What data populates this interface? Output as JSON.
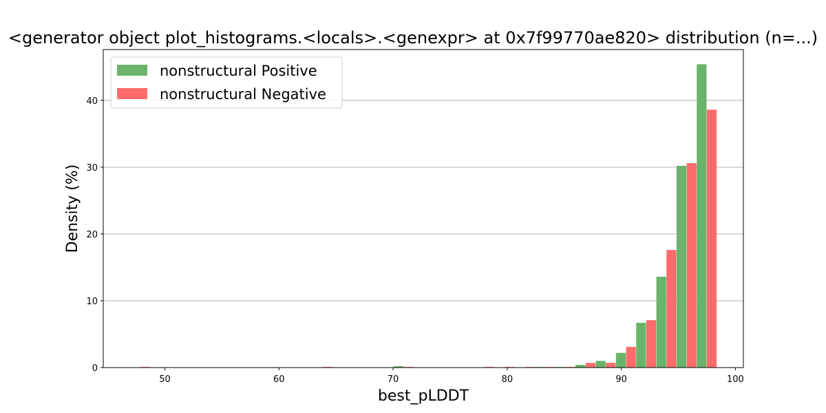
{
  "chart_data": {
    "type": "bar",
    "title": "<generator object plot_histograms.<locals>.<genexpr> at 0x7f99770ae820> distribution (n=...)",
    "xlabel": "best_pLDDT",
    "ylabel": "Density (%)",
    "xlim": [
      44.6,
      100.7
    ],
    "ylim": [
      0,
      47.6
    ],
    "xticks": [
      50,
      60,
      70,
      80,
      90,
      100
    ],
    "yticks": [
      0,
      10,
      20,
      30,
      40
    ],
    "grid": "y",
    "legend_position": "top-left",
    "bin_width": 1.77,
    "x": [
      47.86,
      63.81,
      70.9,
      78.0,
      79.77,
      81.55,
      83.32,
      85.09,
      86.86,
      88.63,
      90.4,
      92.17,
      93.94,
      95.71,
      97.48
    ],
    "series": [
      {
        "name": "nonstructural Positive",
        "color": "#6ab36a",
        "values": [
          0,
          0,
          0.2,
          0,
          0,
          0,
          0.1,
          0.1,
          0.4,
          1.0,
          2.2,
          6.7,
          13.6,
          30.2,
          45.4
        ]
      },
      {
        "name": "nonstructural Negative",
        "color": "#ff6b6b",
        "values": [
          0.1,
          0.1,
          0.1,
          0.1,
          0.1,
          0.1,
          0.1,
          0.1,
          0.7,
          0.7,
          3.1,
          7.1,
          17.6,
          30.6,
          38.6
        ]
      }
    ]
  }
}
